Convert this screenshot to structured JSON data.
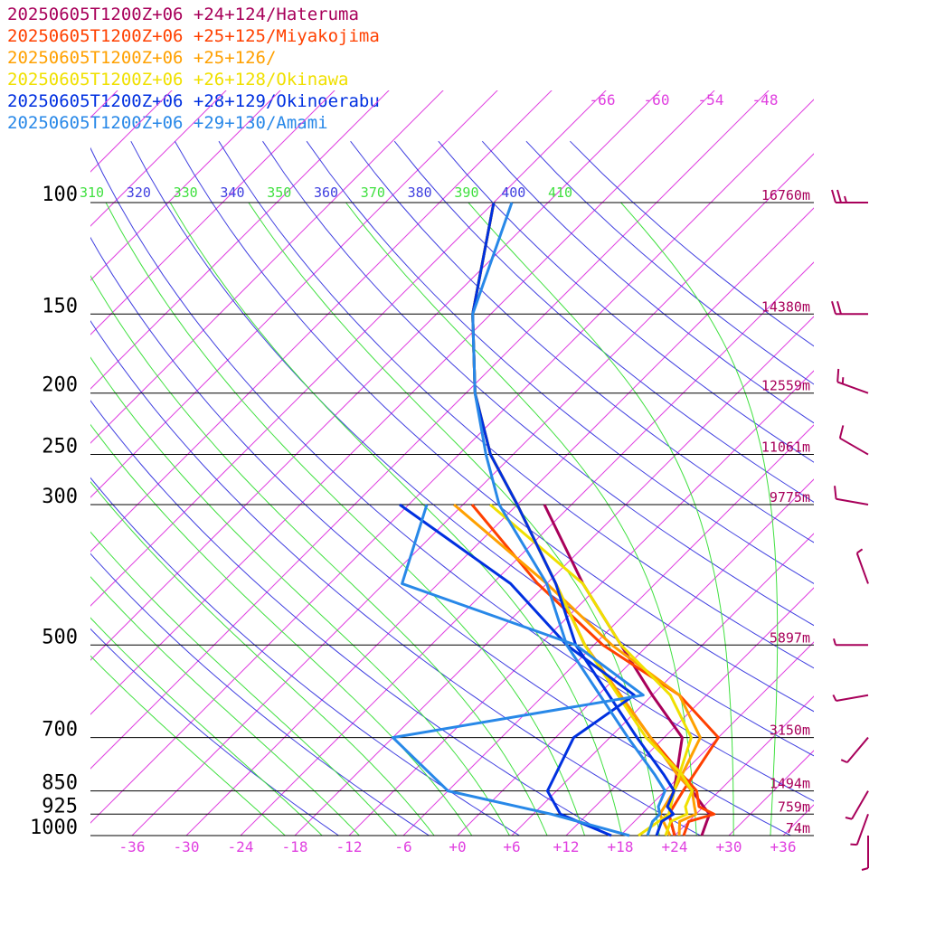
{
  "legend": [
    {
      "label": "20250605T1200Z+06 +24+124/Hateruma",
      "color": "#a8005a"
    },
    {
      "label": "20250605T1200Z+06 +25+125/Miyakojima",
      "color": "#ff4000"
    },
    {
      "label": "20250605T1200Z+06 +25+126/",
      "color": "#ffa000"
    },
    {
      "label": "20250605T1200Z+06 +26+128/Okinawa",
      "color": "#f0e000"
    },
    {
      "label": "20250605T1200Z+06 +28+129/Okinoerabu",
      "color": "#0030e0"
    },
    {
      "label": "20250605T1200Z+06 +29+130/Amami",
      "color": "#2888e8"
    }
  ],
  "chart_data": {
    "type": "line",
    "pressure_levels": [
      "100",
      "150",
      "200",
      "250",
      "300",
      "500",
      "700",
      "850",
      "925",
      "1000"
    ],
    "heights": [
      {
        "p": 100,
        "label": "16760m"
      },
      {
        "p": 150,
        "label": "14380m"
      },
      {
        "p": 200,
        "label": "12559m"
      },
      {
        "p": 250,
        "label": "11061m"
      },
      {
        "p": 300,
        "label": "9775m"
      },
      {
        "p": 500,
        "label": "5897m"
      },
      {
        "p": 700,
        "label": "3150m"
      },
      {
        "p": 850,
        "label": "1494m"
      },
      {
        "p": 925,
        "label": "759m"
      },
      {
        "p": 1000,
        "label": "74m"
      }
    ],
    "x_ticks": [
      "-36",
      "-30",
      "-24",
      "-18",
      "-12",
      "-6",
      "+0",
      "+6",
      "+12",
      "+18",
      "+24",
      "+30",
      "+36"
    ],
    "theta_labels": [
      {
        "t": "310",
        "c": "#40e040"
      },
      {
        "t": "320",
        "c": "#4040e0"
      },
      {
        "t": "330",
        "c": "#40e040"
      },
      {
        "t": "340",
        "c": "#4040e0"
      },
      {
        "t": "350",
        "c": "#40e040"
      },
      {
        "t": "360",
        "c": "#4040e0"
      },
      {
        "t": "370",
        "c": "#40e040"
      },
      {
        "t": "380",
        "c": "#4040e0"
      },
      {
        "t": "390",
        "c": "#40e040"
      },
      {
        "t": "400",
        "c": "#4040e0"
      },
      {
        "t": "410",
        "c": "#40e040"
      }
    ],
    "isotherm_labels": [
      "-66",
      "-60",
      "-54",
      "-48"
    ],
    "colors": {
      "isotherm": "#e040e0",
      "dry_adiabat": "#4040e0",
      "moist_adiabat": "#40e040",
      "isobar": "#000000",
      "height_label": "#a8005a"
    },
    "series": [
      {
        "name": "20250605T1200Z+06 +24+124/Hateruma",
        "color": "#a8005a",
        "temperature": [
          [
            1000,
            27
          ],
          [
            950,
            26
          ],
          [
            925,
            25.5
          ],
          [
            900,
            24
          ],
          [
            850,
            21
          ],
          [
            800,
            17.5
          ],
          [
            700,
            10.5
          ],
          [
            500,
            -7
          ],
          [
            400,
            -17
          ],
          [
            300,
            -30
          ],
          [
            250,
            -38.5
          ],
          [
            200,
            -47
          ],
          [
            150,
            -56
          ],
          [
            100,
            -66
          ]
        ],
        "dewpoint": [
          [
            1000,
            24
          ],
          [
            925,
            21
          ],
          [
            850,
            19
          ],
          [
            700,
            14
          ],
          [
            600,
            6
          ],
          [
            500,
            -3
          ],
          [
            400,
            -14
          ],
          [
            300,
            -27
          ]
        ]
      },
      {
        "name": "20250605T1200Z+06 +25+125/Miyakojima",
        "color": "#ff4000",
        "temperature": [
          [
            1000,
            25
          ],
          [
            950,
            24
          ],
          [
            925,
            26
          ],
          [
            900,
            23.5
          ],
          [
            850,
            21.5
          ],
          [
            800,
            18
          ],
          [
            700,
            10.5
          ],
          [
            500,
            -7
          ],
          [
            400,
            -17
          ],
          [
            300,
            -30
          ],
          [
            250,
            -38.5
          ],
          [
            200,
            -47
          ],
          [
            150,
            -56
          ],
          [
            100,
            -66
          ]
        ],
        "dewpoint": [
          [
            1000,
            24
          ],
          [
            925,
            21
          ],
          [
            850,
            20
          ],
          [
            700,
            18
          ],
          [
            600,
            9
          ],
          [
            500,
            -5
          ],
          [
            400,
            -19
          ],
          [
            300,
            -35
          ]
        ]
      },
      {
        "name": "20250605T1200Z+06 +25+126/",
        "color": "#ffa000",
        "temperature": [
          [
            1000,
            24.5
          ],
          [
            950,
            23
          ],
          [
            925,
            24
          ],
          [
            900,
            23
          ],
          [
            850,
            21
          ],
          [
            800,
            17.5
          ],
          [
            700,
            10.5
          ],
          [
            500,
            -7
          ],
          [
            400,
            -17
          ],
          [
            300,
            -30
          ],
          [
            250,
            -38.5
          ],
          [
            200,
            -47
          ],
          [
            150,
            -56
          ],
          [
            100,
            -66
          ]
        ],
        "dewpoint": [
          [
            1000,
            23.5
          ],
          [
            925,
            20
          ],
          [
            850,
            19
          ],
          [
            700,
            16
          ],
          [
            600,
            9
          ],
          [
            500,
            -4
          ],
          [
            400,
            -18
          ],
          [
            300,
            -37
          ]
        ]
      },
      {
        "name": "20250605T1200Z+06 +26+128/Okinawa",
        "color": "#f0e000",
        "temperature": [
          [
            1000,
            23
          ],
          [
            950,
            22
          ],
          [
            925,
            23
          ],
          [
            900,
            22
          ],
          [
            850,
            21
          ],
          [
            800,
            18
          ],
          [
            700,
            10
          ],
          [
            500,
            -7
          ],
          [
            400,
            -17
          ],
          [
            300,
            -30
          ],
          [
            250,
            -38.5
          ],
          [
            200,
            -47
          ],
          [
            150,
            -56
          ],
          [
            100,
            -66
          ]
        ],
        "dewpoint": [
          [
            1000,
            20
          ],
          [
            925,
            21
          ],
          [
            850,
            19
          ],
          [
            700,
            15
          ],
          [
            600,
            8
          ],
          [
            500,
            -3
          ],
          [
            400,
            -14
          ],
          [
            300,
            -33
          ]
        ]
      },
      {
        "name": "20250605T1200Z+06 +28+129/Okinoerabu",
        "color": "#0030e0",
        "temperature": [
          [
            1000,
            22
          ],
          [
            950,
            21
          ],
          [
            925,
            21.5
          ],
          [
            900,
            20
          ],
          [
            850,
            19
          ],
          [
            800,
            16
          ],
          [
            700,
            9
          ],
          [
            500,
            -8
          ],
          [
            400,
            -17
          ],
          [
            300,
            -30
          ],
          [
            250,
            -38.5
          ],
          [
            200,
            -47
          ],
          [
            150,
            -56
          ],
          [
            100,
            -66
          ]
        ],
        "dewpoint": [
          [
            1000,
            17
          ],
          [
            925,
            9
          ],
          [
            850,
            5
          ],
          [
            700,
            2
          ],
          [
            600,
            4
          ],
          [
            500,
            -9
          ],
          [
            400,
            -22
          ],
          [
            300,
            -43
          ]
        ]
      },
      {
        "name": "20250605T1200Z+06 +29+130/Amami",
        "color": "#2888e8",
        "temperature": [
          [
            1000,
            21
          ],
          [
            950,
            20
          ],
          [
            925,
            20
          ],
          [
            900,
            19
          ],
          [
            850,
            18
          ],
          [
            800,
            15
          ],
          [
            700,
            8
          ],
          [
            500,
            -9
          ],
          [
            400,
            -18
          ],
          [
            300,
            -32
          ],
          [
            250,
            -39
          ],
          [
            200,
            -47
          ],
          [
            150,
            -56
          ],
          [
            100,
            -64
          ]
        ],
        "dewpoint": [
          [
            1000,
            19
          ],
          [
            925,
            8
          ],
          [
            850,
            -6
          ],
          [
            700,
            -18
          ],
          [
            600,
            5
          ],
          [
            500,
            -8
          ],
          [
            400,
            -34
          ],
          [
            300,
            -40
          ]
        ]
      }
    ],
    "wind_barbs": [
      {
        "p": 100,
        "dir": 270,
        "kt": 25
      },
      {
        "p": 150,
        "dir": 270,
        "kt": 20
      },
      {
        "p": 200,
        "dir": 290,
        "kt": 15
      },
      {
        "p": 250,
        "dir": 300,
        "kt": 10
      },
      {
        "p": 300,
        "dir": 280,
        "kt": 10
      },
      {
        "p": 400,
        "dir": 340,
        "kt": 5
      },
      {
        "p": 500,
        "dir": 270,
        "kt": 5
      },
      {
        "p": 600,
        "dir": 260,
        "kt": 5
      },
      {
        "p": 700,
        "dir": 220,
        "kt": 5
      },
      {
        "p": 850,
        "dir": 210,
        "kt": 5
      },
      {
        "p": 925,
        "dir": 200,
        "kt": 5
      },
      {
        "p": 1000,
        "dir": 180,
        "kt": 5
      }
    ]
  }
}
